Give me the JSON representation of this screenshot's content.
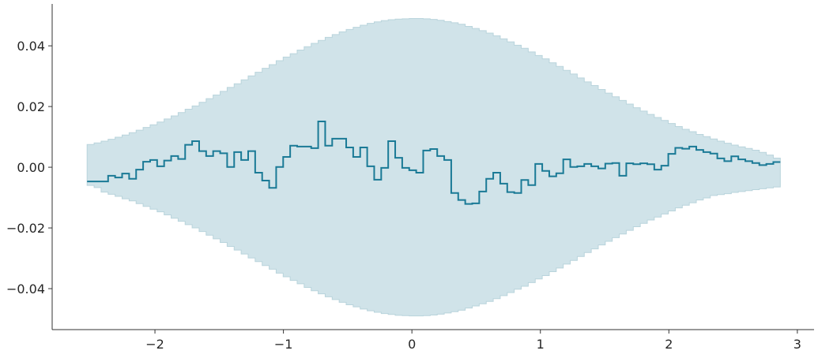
{
  "chart_data": {
    "type": "line",
    "step": true,
    "title": "",
    "xlabel": "",
    "ylabel": "",
    "xlim": [
      -2.8,
      3.13
    ],
    "ylim": [
      -0.0535,
      0.0538
    ],
    "grid": false,
    "x_ticks": [
      -2,
      -1,
      0,
      1,
      2,
      3
    ],
    "x_tick_labels": [
      "−2",
      "−1",
      "0",
      "1",
      "2",
      "3"
    ],
    "y_ticks": [
      -0.04,
      -0.02,
      0.0,
      0.02,
      0.04
    ],
    "y_tick_labels": [
      "−0.04",
      "−0.02",
      "0.00",
      "0.02",
      "0.04"
    ],
    "bin_start": -2.528,
    "bin_width": 0.0545,
    "values": [
      -0.0047,
      -0.0047,
      -0.0047,
      -0.0028,
      -0.0034,
      -0.0021,
      -0.0038,
      -0.0008,
      0.0018,
      0.0024,
      0.0003,
      0.0022,
      0.0037,
      0.0027,
      0.0074,
      0.0086,
      0.0053,
      0.0037,
      0.0053,
      0.0046,
      0.0001,
      0.005,
      0.0024,
      0.0053,
      -0.0018,
      -0.0044,
      -0.0068,
      0.0001,
      0.0034,
      0.0071,
      0.0068,
      0.0068,
      0.0063,
      0.0151,
      0.0071,
      0.0094,
      0.0094,
      0.0065,
      0.0034,
      0.0065,
      0.0003,
      -0.0041,
      -0.0002,
      0.0086,
      0.0031,
      -0.0002,
      -0.001,
      -0.0018,
      0.0055,
      0.006,
      0.0037,
      0.0024,
      -0.0085,
      -0.0108,
      -0.0121,
      -0.0119,
      -0.008,
      -0.0038,
      -0.0018,
      -0.0054,
      -0.0082,
      -0.0085,
      -0.0042,
      -0.0059,
      0.0011,
      -0.0012,
      -0.003,
      -0.002,
      0.0026,
      0.0001,
      0.0003,
      0.0011,
      0.0003,
      -0.0004,
      0.0012,
      0.0014,
      -0.0028,
      0.0013,
      0.001,
      0.0013,
      0.001,
      -0.0008,
      0.0005,
      0.0044,
      0.0064,
      0.0061,
      0.0068,
      0.0057,
      0.005,
      0.0045,
      0.0029,
      0.002,
      0.0036,
      0.0026,
      0.002,
      0.0014,
      0.0007,
      0.0011,
      0.0017
    ],
    "band_upper": [
      0.0075,
      0.008,
      0.0086,
      0.0092,
      0.0099,
      0.0106,
      0.0114,
      0.0122,
      0.0131,
      0.014,
      0.0149,
      0.0159,
      0.0169,
      0.018,
      0.0191,
      0.0202,
      0.0214,
      0.0226,
      0.0238,
      0.025,
      0.0263,
      0.0275,
      0.0288,
      0.0301,
      0.0313,
      0.0326,
      0.0338,
      0.0351,
      0.0363,
      0.0374,
      0.0386,
      0.0397,
      0.0408,
      0.0418,
      0.0428,
      0.0437,
      0.0446,
      0.0454,
      0.0461,
      0.0468,
      0.0474,
      0.0479,
      0.0483,
      0.0486,
      0.0488,
      0.0489,
      0.049,
      0.049,
      0.0489,
      0.0487,
      0.0484,
      0.048,
      0.0476,
      0.0471,
      0.0464,
      0.0457,
      0.045,
      0.0442,
      0.0433,
      0.0423,
      0.0413,
      0.0402,
      0.0392,
      0.038,
      0.0368,
      0.0357,
      0.0344,
      0.0332,
      0.0319,
      0.0307,
      0.0294,
      0.0281,
      0.0269,
      0.0256,
      0.0244,
      0.0232,
      0.022,
      0.0208,
      0.0196,
      0.0185,
      0.0174,
      0.0164,
      0.0154,
      0.0144,
      0.0134,
      0.0125,
      0.0117,
      0.0108,
      0.0101,
      0.0093,
      0.0086,
      0.0079,
      0.0073,
      0.0067,
      0.0062,
      0.0056,
      0.0049,
      0.004,
      0.003
    ],
    "band_lower": [
      -0.006,
      -0.0067,
      -0.0082,
      -0.0089,
      -0.0096,
      -0.0104,
      -0.0111,
      -0.012,
      -0.0129,
      -0.0138,
      -0.0147,
      -0.0157,
      -0.0168,
      -0.0178,
      -0.0189,
      -0.02,
      -0.0212,
      -0.0224,
      -0.0236,
      -0.0248,
      -0.0261,
      -0.0273,
      -0.0286,
      -0.0299,
      -0.0311,
      -0.0324,
      -0.0336,
      -0.0349,
      -0.0361,
      -0.0373,
      -0.0384,
      -0.0396,
      -0.0407,
      -0.0417,
      -0.0427,
      -0.0436,
      -0.0445,
      -0.0453,
      -0.046,
      -0.0467,
      -0.0473,
      -0.0478,
      -0.0482,
      -0.0485,
      -0.0488,
      -0.0489,
      -0.049,
      -0.049,
      -0.0489,
      -0.0487,
      -0.0484,
      -0.048,
      -0.0476,
      -0.0471,
      -0.0464,
      -0.0457,
      -0.045,
      -0.0442,
      -0.0433,
      -0.0423,
      -0.0413,
      -0.0402,
      -0.0392,
      -0.038,
      -0.0368,
      -0.0357,
      -0.0344,
      -0.0332,
      -0.0319,
      -0.0307,
      -0.0294,
      -0.0281,
      -0.0269,
      -0.0256,
      -0.0244,
      -0.0232,
      -0.022,
      -0.0208,
      -0.0196,
      -0.0185,
      -0.0174,
      -0.0164,
      -0.0154,
      -0.0144,
      -0.0134,
      -0.0125,
      -0.0117,
      -0.0108,
      -0.0101,
      -0.0093,
      -0.009,
      -0.0087,
      -0.0083,
      -0.008,
      -0.0077,
      -0.0074,
      -0.0071,
      -0.0068,
      -0.0065
    ],
    "colors": {
      "line": "#1a7a96",
      "band_fill": "#d0e3e9",
      "band_edge": "#b9d4dc",
      "axis": "#333333"
    }
  }
}
